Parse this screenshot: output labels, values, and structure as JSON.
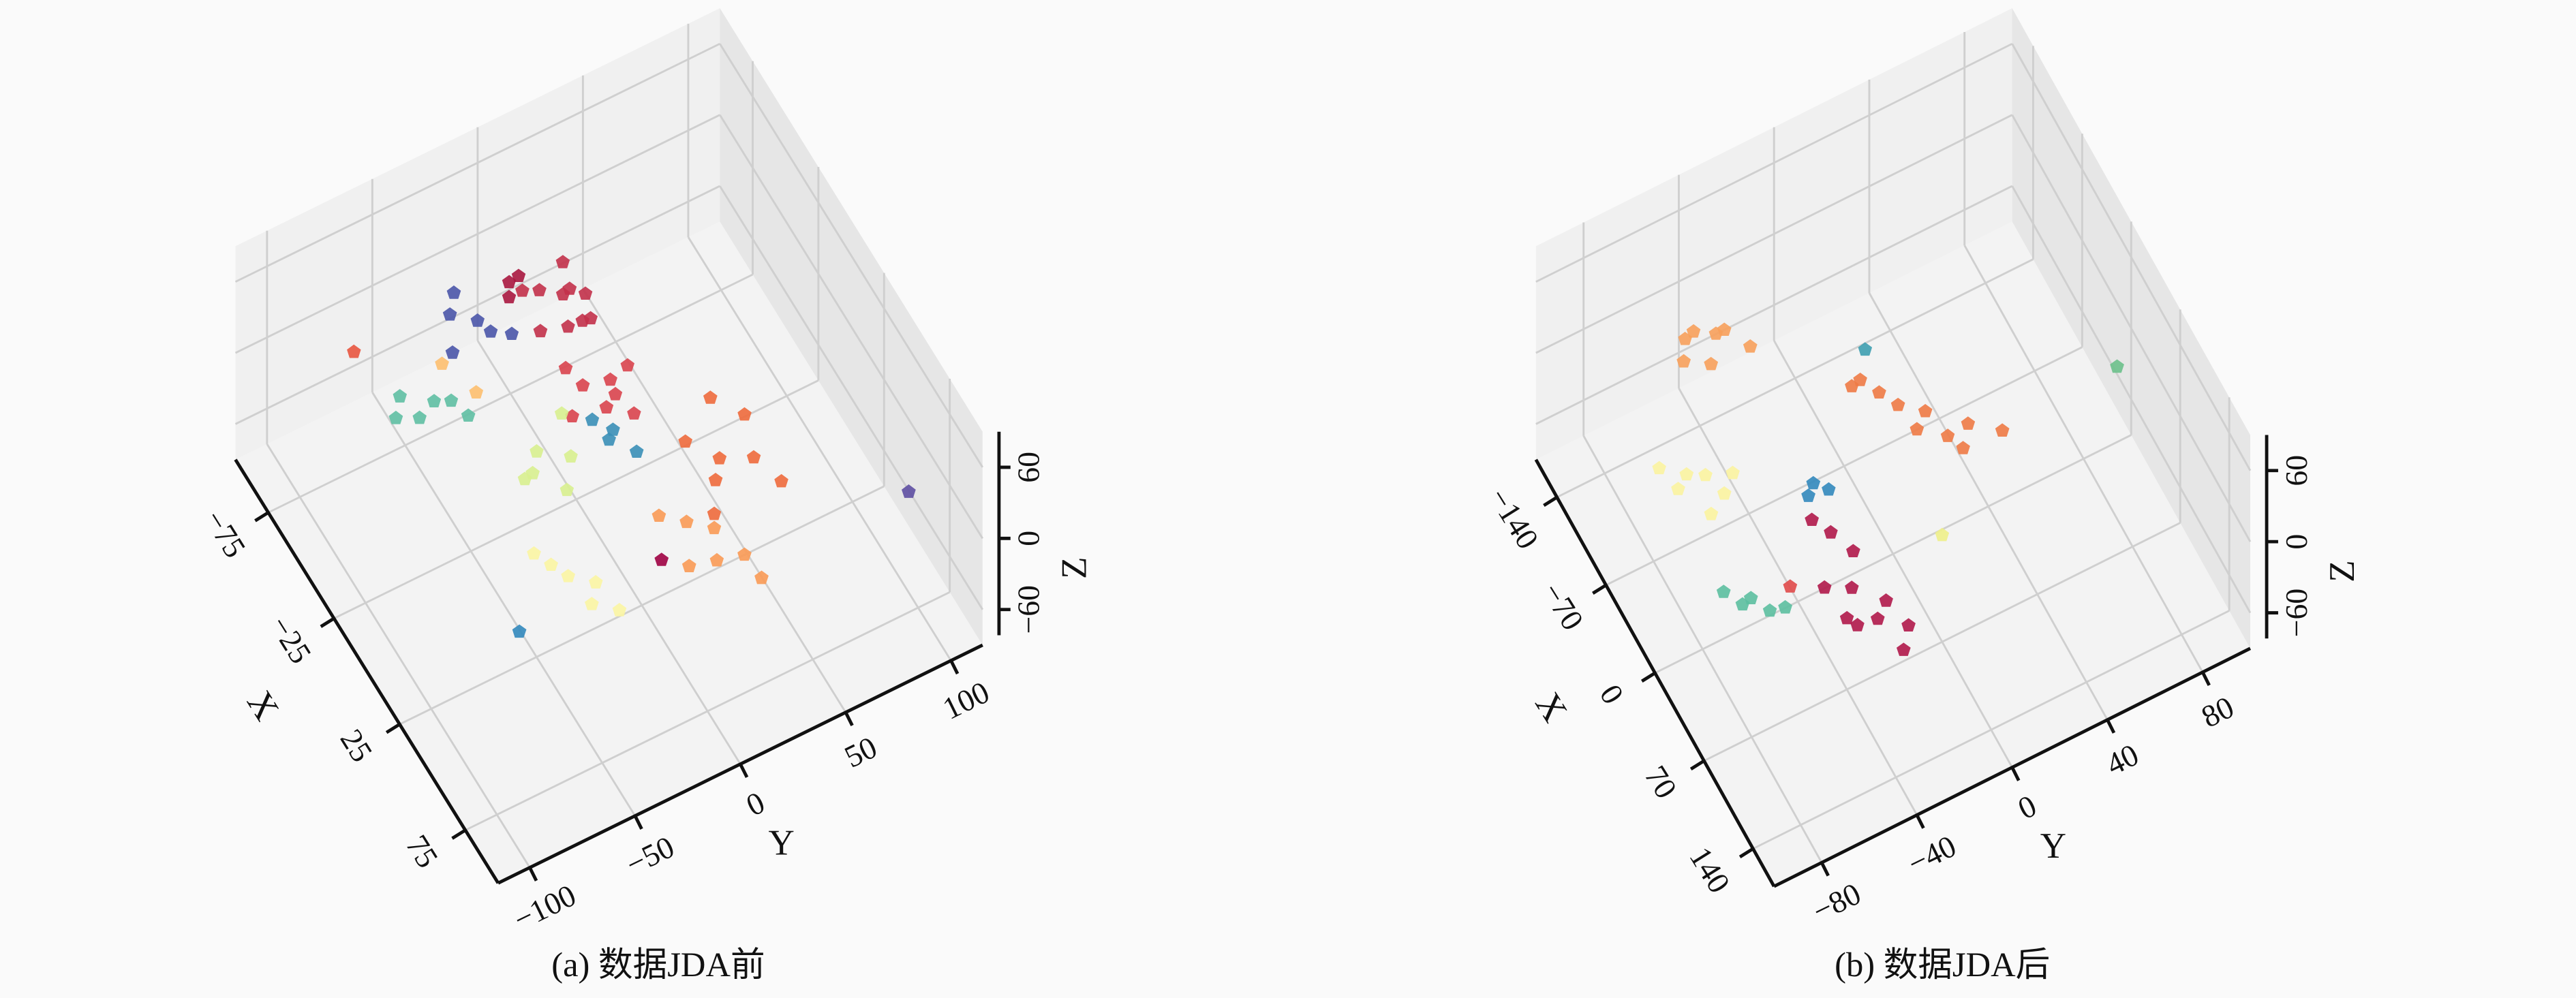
{
  "chart_data": [
    {
      "type": "scatter3d",
      "caption": "(a) 数据JDA前",
      "xlabel": "X",
      "ylabel": "Y",
      "zlabel": "Z",
      "xlim": [
        -100,
        100
      ],
      "ylim": [
        -115,
        115
      ],
      "zlim": [
        -90,
        90
      ],
      "xticks": [
        {
          "value": -75,
          "label": "−75"
        },
        {
          "value": -25,
          "label": "−25"
        },
        25,
        75
      ],
      "yticks": [
        {
          "value": -100,
          "label": "−100"
        },
        {
          "value": -50,
          "label": "−50"
        },
        0,
        50,
        100
      ],
      "zticks": [
        {
          "value": -60,
          "label": "−60"
        },
        0,
        60
      ],
      "grid": true,
      "series": [
        {
          "color": "#c2314a",
          "x": [
            -45,
            -38,
            -30,
            -50,
            -35,
            -42,
            -28,
            -48,
            -33,
            -25
          ],
          "y": [
            -5,
            5,
            10,
            -10,
            0,
            15,
            -2,
            8,
            -12,
            3
          ],
          "z": [
            55,
            60,
            45,
            50,
            65,
            40,
            52,
            62,
            48,
            58
          ]
        },
        {
          "color": "#a8173f",
          "x": [
            -52,
            -44,
            -56
          ],
          "y": [
            -15,
            -20,
            -8
          ],
          "z": [
            58,
            64,
            50
          ]
        },
        {
          "color": "#d9444e",
          "x": [
            -20,
            -15,
            -10,
            -25,
            -5,
            -18,
            -12,
            -8
          ],
          "y": [
            0,
            10,
            5,
            -5,
            15,
            20,
            -10,
            8
          ],
          "z": [
            15,
            20,
            10,
            25,
            5,
            18,
            12,
            22
          ]
        },
        {
          "color": "#ee6a3c",
          "x": [
            10,
            20,
            30,
            15,
            25,
            5,
            35,
            40
          ],
          "y": [
            30,
            40,
            50,
            55,
            35,
            45,
            60,
            25
          ],
          "z": [
            -5,
            -10,
            0,
            5,
            -15,
            10,
            -20,
            -8
          ]
        },
        {
          "color": "#f99a55",
          "x": [
            35,
            40,
            50,
            45,
            55,
            30,
            60
          ],
          "y": [
            15,
            25,
            20,
            10,
            30,
            5,
            35
          ],
          "z": [
            -15,
            -20,
            -25,
            -30,
            -20,
            -10,
            -35
          ]
        },
        {
          "color": "#4a55a8",
          "x": [
            -65,
            -60,
            -55,
            -70,
            -58,
            -50
          ],
          "y": [
            -35,
            -25,
            -40,
            -30,
            -20,
            -15
          ],
          "z": [
            25,
            20,
            15,
            30,
            10,
            18
          ]
        },
        {
          "color": "#5fbfa3",
          "x": [
            -55,
            -45,
            -50,
            -40,
            -48,
            -35
          ],
          "y": [
            -65,
            -55,
            -70,
            -50,
            -60,
            -45
          ],
          "z": [
            0,
            5,
            -5,
            10,
            -10,
            2
          ]
        },
        {
          "color": "#d8ef8f",
          "x": [
            -15,
            -5,
            -10,
            0,
            -20,
            -8
          ],
          "y": [
            -25,
            -15,
            -30,
            -20,
            -10,
            -35
          ],
          "z": [
            -10,
            -5,
            -15,
            -20,
            0,
            -12
          ]
        },
        {
          "color": "#fbf5a3",
          "x": [
            25,
            30,
            35,
            20,
            40,
            15
          ],
          "y": [
            -35,
            -25,
            -30,
            -40,
            -20,
            -45
          ],
          "z": [
            -35,
            -40,
            -45,
            -30,
            -50,
            -25
          ]
        },
        {
          "color": "#fdbf6f",
          "x": [
            -55,
            -45
          ],
          "y": [
            -45,
            -35
          ],
          "z": [
            10,
            -5
          ]
        },
        {
          "color": "#3a8fb7",
          "x": [
            -5,
            0,
            5,
            -8
          ],
          "y": [
            5,
            0,
            10,
            -3
          ],
          "z": [
            0,
            5,
            -5,
            10
          ]
        },
        {
          "color": "#5e4fa2",
          "x": [
            55
          ],
          "y": [
            108
          ],
          "z": [
            -35
          ]
        },
        {
          "color": "#9e0142",
          "x": [
            40
          ],
          "y": [
            0
          ],
          "z": [
            -25
          ]
        },
        {
          "color": "#3288bd",
          "x": [
            60
          ],
          "y": [
            -80
          ],
          "z": [
            20
          ]
        },
        {
          "color": "#e8553f",
          "x": [
            -90
          ],
          "y": [
            -65
          ],
          "z": [
            -25
          ]
        }
      ]
    },
    {
      "type": "scatter3d",
      "caption": "(b) 数据JDA后",
      "xlabel": "X",
      "ylabel": "Y",
      "zlabel": "Z",
      "xlim": [
        -170,
        170
      ],
      "ylim": [
        -100,
        100
      ],
      "zlim": [
        -90,
        90
      ],
      "xticks": [
        {
          "value": -140,
          "label": "−140"
        },
        {
          "value": -70,
          "label": "−70"
        },
        0,
        70,
        140
      ],
      "yticks": [
        {
          "value": -80,
          "label": "−80"
        },
        {
          "value": -40,
          "label": "−40"
        },
        0,
        40,
        80
      ],
      "zticks": [
        {
          "value": -60,
          "label": "−60"
        },
        0,
        60
      ],
      "grid": true,
      "series": [
        {
          "color": "#f7a05b",
          "x": [
            -110,
            -100,
            -90,
            -105,
            -95,
            -85,
            -115
          ],
          "y": [
            -55,
            -45,
            -50,
            -40,
            -60,
            -35,
            -50
          ],
          "z": [
            30,
            35,
            25,
            28,
            32,
            30,
            26
          ]
        },
        {
          "color": "#ee7a45",
          "x": [
            -30,
            -20,
            -10,
            0,
            10,
            -25,
            5,
            15,
            20,
            -5
          ],
          "y": [
            -5,
            0,
            5,
            10,
            20,
            -10,
            30,
            25,
            40,
            15
          ],
          "z": [
            30,
            25,
            20,
            5,
            0,
            35,
            -5,
            -10,
            -5,
            10
          ]
        },
        {
          "color": "#fbf3a0",
          "x": [
            -40,
            -30,
            -20,
            -35,
            -25,
            -45,
            -15
          ],
          "y": [
            -75,
            -70,
            -65,
            -80,
            -60,
            -85,
            -72
          ],
          "z": [
            10,
            15,
            5,
            8,
            12,
            20,
            0
          ]
        },
        {
          "color": "#b0184a",
          "x": [
            20,
            30,
            45,
            60,
            75,
            80,
            90,
            70,
            85,
            100,
            55
          ],
          "y": [
            -40,
            -35,
            -30,
            -35,
            -25,
            -30,
            -20,
            -40,
            -40,
            -25,
            -45
          ],
          "z": [
            0,
            -5,
            -10,
            -20,
            -25,
            -30,
            -35,
            -30,
            -20,
            -40,
            -15
          ]
        },
        {
          "color": "#5cbfa0",
          "x": [
            35,
            40,
            45,
            30,
            50
          ],
          "y": [
            -70,
            -75,
            -65,
            -80,
            -60
          ],
          "z": [
            -20,
            -15,
            -25,
            -10,
            -22
          ]
        },
        {
          "color": "#3288bd",
          "x": [
            5,
            10,
            15
          ],
          "y": [
            -35,
            -30,
            -40
          ],
          "z": [
            10,
            5,
            15
          ]
        },
        {
          "color": "#eef08a",
          "x": [
            70
          ],
          "y": [
            0
          ],
          "z": [
            0
          ]
        },
        {
          "color": "#6cc08b",
          "x": [
            -10
          ],
          "y": [
            97
          ],
          "z": [
            -40
          ]
        },
        {
          "color": "#3e9fb0",
          "x": [
            -40
          ],
          "y": [
            0
          ],
          "z": [
            40
          ]
        },
        {
          "color": "#e04a4a",
          "x": [
            40
          ],
          "y": [
            -55
          ],
          "z": [
            -20
          ]
        }
      ]
    }
  ]
}
